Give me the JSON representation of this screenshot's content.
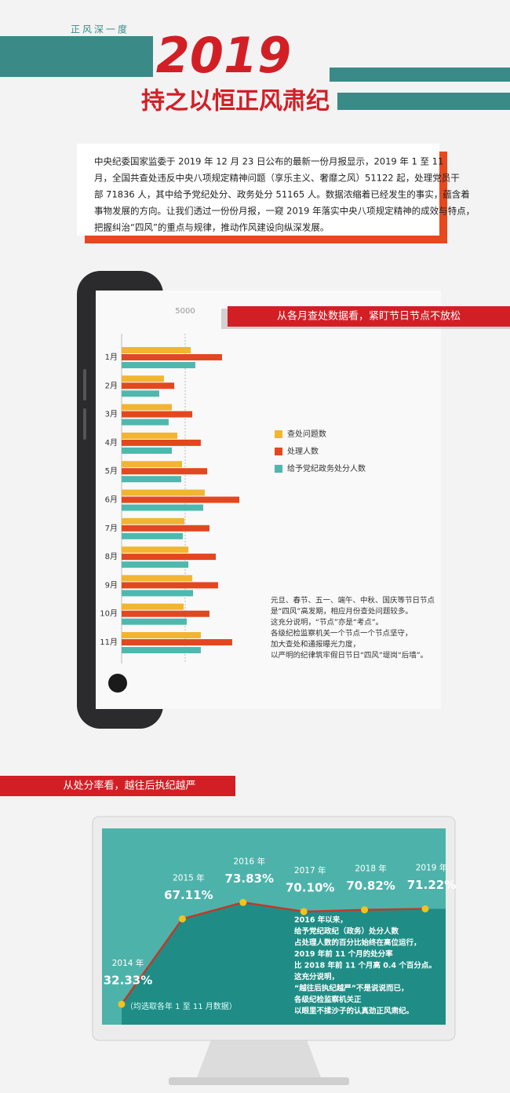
{
  "header": {
    "tag": "正风深一度",
    "year": "2019",
    "title": "持之以恒正风肃纪"
  },
  "intro": [
    "中央纪委国家监委于 2019 年 12 月 23 日公布的最新一份月报显示，2019 年 1 至 11",
    "月，全国共查处违反中央八项规定精神问题（享乐主义、奢靡之风）51122 起，处理党员干",
    "部 71836 人，其中给予党纪处分、政务处分 51165 人。数据浓缩着已经发生的事实，蕴含着",
    "事物发展的方向。让我们透过一份份月报，一窥 2019 年落实中央八项规定精神的成效与特点，",
    "把握纠治“四风”的重点与规律，推动作风建设向纵深发展。"
  ],
  "chart_data": [
    {
      "type": "bar",
      "orientation": "horizontal",
      "title": "从各月查处数据看，紧盯节日节点不放松",
      "categories": [
        "1月",
        "2月",
        "3月",
        "4月",
        "5月",
        "6月",
        "7月",
        "8月",
        "9月",
        "10月",
        "11月"
      ],
      "series": [
        {
          "name": "查处问题数",
          "color": "#f2b532",
          "values": [
            5430,
            3330,
            3950,
            4380,
            4750,
            6540,
            4940,
            5250,
            5560,
            4880,
            6230
          ]
        },
        {
          "name": "处理人数",
          "color": "#e2481f",
          "values": [
            7900,
            4140,
            5560,
            6230,
            6730,
            9260,
            6910,
            7410,
            7590,
            6910,
            8700
          ]
        },
        {
          "name": "给予党纪政务处分人数",
          "color": "#4fb8ae",
          "values": [
            5800,
            2960,
            3700,
            3950,
            4690,
            6420,
            4810,
            5250,
            5620,
            5120,
            6230
          ]
        }
      ],
      "xlim": [
        0,
        10000
      ],
      "xticks": [
        5000
      ],
      "grid": true,
      "annotation": [
        "元旦、春节、五一、端午、中秋、国庆等节日节点",
        "是“四风”高发期，相应月份查处问题较多。",
        "这充分说明，“节点”亦是“考点”。",
        "各级纪检监察机关一个节点一个节点坚守，",
        "加大查处和通报曝光力度，",
        "以严明的纪律筑牢假日节日“四风”堤岗“后墙”。"
      ]
    },
    {
      "type": "line",
      "title": "从处分率看，越往后执纪越严",
      "categories": [
        "2014 年",
        "2015 年",
        "2016 年",
        "2017 年",
        "2018 年",
        "2019 年"
      ],
      "values": [
        32.33,
        67.11,
        73.83,
        70.1,
        70.82,
        71.22
      ],
      "value_labels": [
        "32.33%",
        "67.11%",
        "73.83%",
        "70.10%",
        "70.82%",
        "71.22%"
      ],
      "color": "#c0392b",
      "marker_color": "#f2c31c",
      "fill_color": "#1f8d85",
      "ylim": [
        24,
        104
      ],
      "note": "（均选取各年 1 至 11 月数据）",
      "annotation": [
        "2016 年以来，",
        "给予党纪政纪（政务）处分人数",
        "占处理人数的百分比始终在高位运行，",
        "2019 年前 11 个月的处分率",
        "比 2018 年前 11 个月高 0.4 个百分点。",
        "这充分说明，",
        "“越往后执纪越严”不是说说而已，",
        "各级纪检监察机关正",
        "以眼里不揉沙子的认真劲正风肃纪。"
      ]
    }
  ]
}
